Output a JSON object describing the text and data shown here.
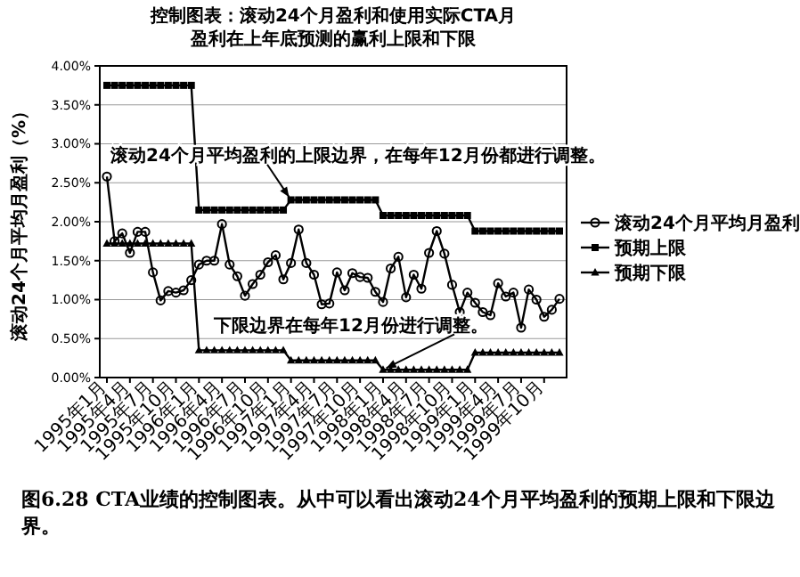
{
  "chart_data": {
    "type": "line",
    "title": "控制图表：滚动24个月盈利和使用实际CTA月盈利在上年底预测的赢利上限和下限",
    "ylabel": "滚动24个月平均月盈利（%）",
    "categories": [
      "1995年1月",
      null,
      null,
      "1995年4月",
      null,
      null,
      "1995年7月",
      null,
      null,
      "1995年10月",
      null,
      null,
      "1996年1月",
      null,
      null,
      "1996年4月",
      null,
      null,
      "1996年7月",
      null,
      null,
      "1996年10月",
      null,
      null,
      "1997年1月",
      null,
      null,
      "1997年4月",
      null,
      null,
      "1997年7月",
      null,
      null,
      "1997年10月",
      null,
      null,
      "1998年1月",
      null,
      null,
      "1998年4月",
      null,
      null,
      "1998年7月",
      null,
      null,
      "1998年10月",
      null,
      null,
      "1999年1月",
      null,
      null,
      "1999年4月",
      null,
      null,
      "1999年7月",
      null,
      null,
      "1999年10月",
      null,
      null
    ],
    "series": [
      {
        "name": "滚动24个月平均月盈利",
        "color": "#000000",
        "marker": "circle",
        "values": [
          2.58,
          1.75,
          1.85,
          1.6,
          1.87,
          1.87,
          1.35,
          0.99,
          1.11,
          1.09,
          1.12,
          1.25,
          1.45,
          1.5,
          1.5,
          1.97,
          1.45,
          1.3,
          1.05,
          1.2,
          1.32,
          1.48,
          1.57,
          1.26,
          1.47,
          1.9,
          1.47,
          1.32,
          0.94,
          0.95,
          1.35,
          1.12,
          1.34,
          1.29,
          1.28,
          1.1,
          0.97,
          1.4,
          1.55,
          1.03,
          1.32,
          1.14,
          1.6,
          1.88,
          1.59,
          1.19,
          0.84,
          1.09,
          0.96,
          0.84,
          0.8,
          1.21,
          1.04,
          1.09,
          0.64,
          1.13,
          1.0,
          0.78,
          0.87,
          1.01
        ]
      },
      {
        "name": "预期上限",
        "color": "#000000",
        "marker": "square",
        "values": [
          3.75,
          3.75,
          3.75,
          3.75,
          3.75,
          3.75,
          3.75,
          3.75,
          3.75,
          3.75,
          3.75,
          3.75,
          2.15,
          2.15,
          2.15,
          2.15,
          2.15,
          2.15,
          2.15,
          2.15,
          2.15,
          2.15,
          2.15,
          2.15,
          2.28,
          2.28,
          2.28,
          2.28,
          2.28,
          2.28,
          2.28,
          2.28,
          2.28,
          2.28,
          2.28,
          2.28,
          2.08,
          2.08,
          2.08,
          2.08,
          2.08,
          2.08,
          2.08,
          2.08,
          2.08,
          2.08,
          2.08,
          2.08,
          1.88,
          1.88,
          1.88,
          1.88,
          1.88,
          1.88,
          1.88,
          1.88,
          1.88,
          1.88,
          1.88,
          1.88
        ]
      },
      {
        "name": "预期下限",
        "color": "#000000",
        "marker": "triangle",
        "values": [
          1.72,
          1.72,
          1.72,
          1.72,
          1.72,
          1.72,
          1.72,
          1.72,
          1.72,
          1.72,
          1.72,
          1.72,
          0.35,
          0.35,
          0.35,
          0.35,
          0.35,
          0.35,
          0.35,
          0.35,
          0.35,
          0.35,
          0.35,
          0.35,
          0.22,
          0.22,
          0.22,
          0.22,
          0.22,
          0.22,
          0.22,
          0.22,
          0.22,
          0.22,
          0.22,
          0.22,
          0.1,
          0.1,
          0.1,
          0.1,
          0.1,
          0.1,
          0.1,
          0.1,
          0.1,
          0.1,
          0.1,
          0.1,
          0.32,
          0.32,
          0.32,
          0.32,
          0.32,
          0.32,
          0.32,
          0.32,
          0.32,
          0.32,
          0.32,
          0.32
        ]
      }
    ],
    "ylim": [
      0,
      4
    ],
    "yticks": [
      {
        "value": 0,
        "label": "0.00%"
      },
      {
        "value": 0.5,
        "label": "0.50%"
      },
      {
        "value": 1,
        "label": "1.00%"
      },
      {
        "value": 1.5,
        "label": "1.50%"
      },
      {
        "value": 2,
        "label": "2.00%"
      },
      {
        "value": 2.5,
        "label": "2.50%"
      },
      {
        "value": 3,
        "label": "3.00%"
      },
      {
        "value": 3.5,
        "label": "3.50%"
      },
      {
        "value": 4,
        "label": "4.00%"
      }
    ],
    "grid": "y",
    "legend": "right",
    "annotations": [
      {
        "text": "滚动24个月平均盈利的上限边界，在每年12月份都进行调整。",
        "x": "1997年1月",
        "y": 2.28
      },
      {
        "text": "下限边界在每年12月份进行调整。",
        "x": "1998年1月",
        "y": 0.1
      },
      "图6.28  CTA业绩的控制图表。从中可以看出滚动24个月平均盈利的预期上限和下限边界。"
    ]
  }
}
